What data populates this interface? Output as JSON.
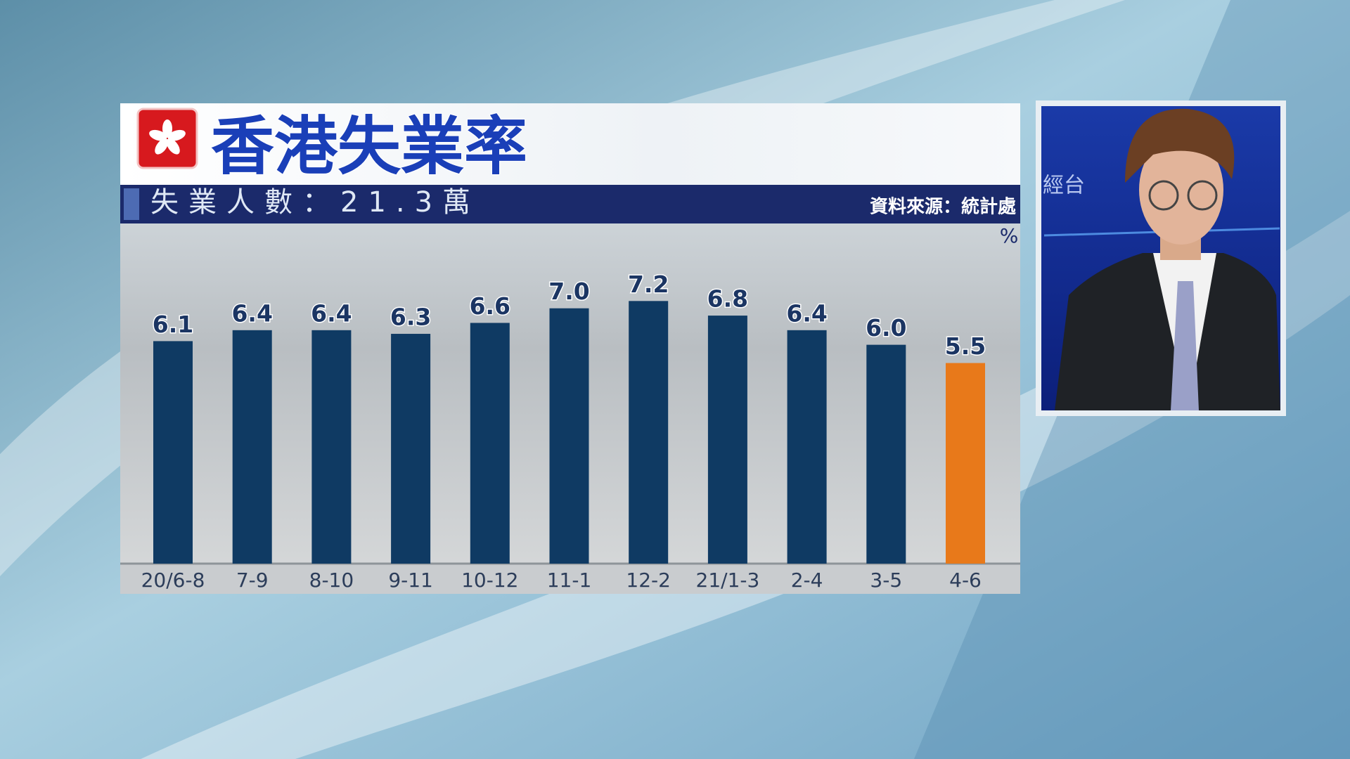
{
  "chart_data": {
    "type": "bar",
    "title": "香港失業率",
    "subtitle": "失業人數：21.3萬",
    "source": "資料來源：統計處",
    "unit": "%",
    "categories": [
      "20/6-8",
      "7-9",
      "8-10",
      "9-11",
      "10-12",
      "11-1",
      "12-2",
      "21/1-3",
      "2-4",
      "3-5",
      "4-6"
    ],
    "values": [
      6.1,
      6.4,
      6.4,
      6.3,
      6.6,
      7.0,
      7.2,
      6.8,
      6.4,
      6.0,
      5.5
    ],
    "value_labels": [
      "6.1",
      "6.4",
      "6.4",
      "6.3",
      "6.6",
      "7.0",
      "7.2",
      "6.8",
      "6.4",
      "6.0",
      "5.5"
    ],
    "colors": [
      "#0f3a63",
      "#0f3a63",
      "#0f3a63",
      "#0f3a63",
      "#0f3a63",
      "#0f3a63",
      "#0f3a63",
      "#0f3a63",
      "#0f3a63",
      "#0f3a63",
      "#e8791a"
    ]
  },
  "inset": {
    "logo_text": "經台"
  }
}
